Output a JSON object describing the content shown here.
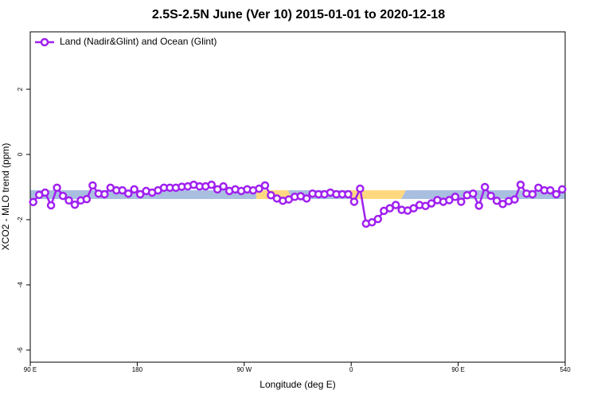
{
  "chart_data": {
    "type": "line",
    "title": "2.5S-2.5N June (Ver 10)   2015-01-01 to 2020-12-18",
    "x_label": "Longitude (deg E)",
    "y_label": "XCO2 - MLO trend (ppm)",
    "xlim": [
      90,
      540
    ],
    "ylim": [
      -6.37,
      3.76
    ],
    "xticks": [
      {
        "value": 90,
        "label": "90 E"
      },
      180,
      {
        "value": 270,
        "label": "90 W"
      },
      {
        "value": 360,
        "label": "0"
      },
      {
        "value": 450,
        "label": "90 E"
      },
      540
    ],
    "yticks": [
      -6,
      -4,
      -2,
      0,
      2
    ],
    "legend": "top-left",
    "x": [
      92.5,
      97.5,
      102.5,
      107.5,
      112.5,
      117.5,
      122.5,
      127.5,
      132.5,
      137.5,
      142.5,
      147.5,
      152.5,
      157.5,
      162.5,
      167.5,
      172.5,
      177.5,
      182.5,
      187.5,
      192.5,
      197.5,
      202.5,
      207.5,
      212.5,
      217.5,
      222.5,
      227.5,
      232.5,
      237.5,
      242.5,
      247.5,
      252.5,
      257.5,
      262.5,
      267.5,
      272.5,
      277.5,
      282.5,
      287.5,
      292.5,
      297.5,
      302.5,
      307.5,
      312.5,
      317.5,
      322.5,
      327.5,
      332.5,
      337.5,
      342.5,
      347.5,
      352.5,
      357.5,
      362.5,
      367.5,
      372.5,
      377.5,
      382.5,
      387.5,
      392.5,
      397.5,
      402.5,
      407.5,
      412.5,
      417.5,
      422.5,
      427.5,
      432.5,
      437.5,
      442.5,
      447.5,
      452.5,
      457.5,
      462.5,
      467.5,
      472.5,
      477.5,
      482.5,
      487.5,
      492.5,
      497.5,
      502.5,
      507.5,
      512.5,
      517.5,
      522.5,
      527.5,
      532.5,
      537.5
    ],
    "series": [
      {
        "name": "Land (Nadir&Glint) and Ocean (Glint)",
        "color": "#a020f0",
        "values": [
          -1.46,
          -1.24,
          -1.17,
          -1.56,
          -1.02,
          -1.27,
          -1.41,
          -1.54,
          -1.41,
          -1.37,
          -0.95,
          -1.2,
          -1.22,
          -1.02,
          -1.1,
          -1.1,
          -1.2,
          -1.07,
          -1.22,
          -1.12,
          -1.17,
          -1.1,
          -1.02,
          -1.02,
          -1.02,
          -0.99,
          -0.98,
          -0.93,
          -0.98,
          -0.98,
          -0.93,
          -1.07,
          -0.98,
          -1.12,
          -1.07,
          -1.12,
          -1.07,
          -1.1,
          -1.05,
          -0.95,
          -1.25,
          -1.35,
          -1.42,
          -1.38,
          -1.3,
          -1.28,
          -1.35,
          -1.2,
          -1.22,
          -1.22,
          -1.17,
          -1.22,
          -1.22,
          -1.22,
          -1.45,
          -1.05,
          -2.12,
          -2.08,
          -1.98,
          -1.73,
          -1.65,
          -1.55,
          -1.7,
          -1.72,
          -1.65,
          -1.55,
          -1.58,
          -1.5,
          -1.4,
          -1.45,
          -1.4,
          -1.3,
          -1.45,
          -1.25,
          -1.2,
          -1.57,
          -1.0,
          -1.27,
          -1.42,
          -1.52,
          -1.43,
          -1.38,
          -0.93,
          -1.2,
          -1.22,
          -1.02,
          -1.1,
          -1.1,
          -1.22,
          -1.07
        ]
      }
    ]
  }
}
